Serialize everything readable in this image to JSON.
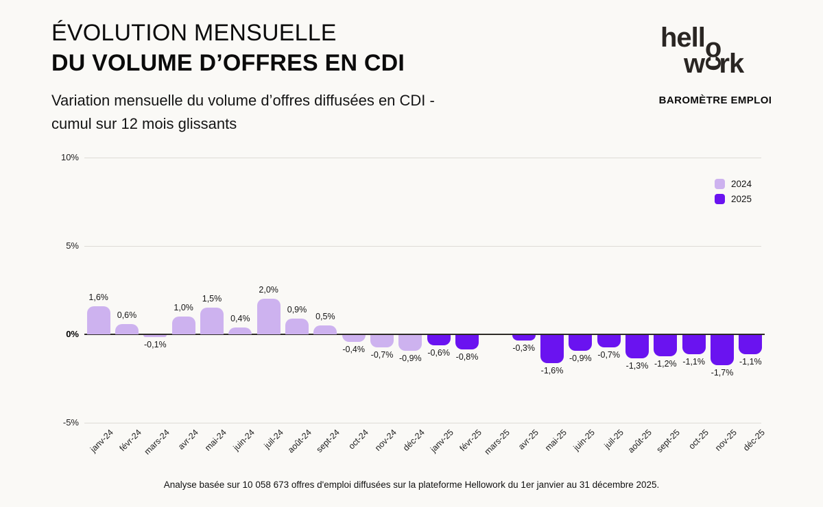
{
  "header": {
    "title_line1": "ÉVOLUTION MENSUELLE",
    "title_line2": "DU VOLUME D’OFFRES EN CDI",
    "subtitle_line1": "Variation mensuelle du volume d’offres diffusées en CDI -",
    "subtitle_line2": "cumul sur 12 mois glissants"
  },
  "logo": {
    "line1": "hell",
    "line1_o": "o",
    "line2_start": "w",
    "line2_o": "c",
    "line2_end": "rk",
    "tagline": "BAROMÈTRE EMPLOI"
  },
  "chart_data": {
    "type": "bar",
    "title": "",
    "xlabel": "",
    "ylabel": "",
    "categories": [
      "janv-24",
      "févr-24",
      "mars-24",
      "avr-24",
      "mai-24",
      "juin-24",
      "juil-24",
      "août-24",
      "sept-24",
      "oct-24",
      "nov-24",
      "déc-24",
      "janv-25",
      "févr-25",
      "mars-25",
      "avr-25",
      "mai-25",
      "juin-25",
      "juil-25",
      "août-25",
      "sept-25",
      "oct-25",
      "nov-25",
      "déc-25"
    ],
    "values": [
      1.6,
      0.6,
      -0.1,
      1.0,
      1.5,
      0.4,
      2.0,
      0.9,
      0.5,
      -0.4,
      -0.7,
      -0.9,
      -0.6,
      -0.8,
      0.0,
      -0.3,
      -1.6,
      -0.9,
      -0.7,
      -1.3,
      -1.2,
      -1.1,
      -1.7,
      -1.1
    ],
    "bar_labels": [
      "1,6%",
      "0,6%",
      "-0,1%",
      "1,0%",
      "1,5%",
      "0,4%",
      "2,0%",
      "0,9%",
      "0,5%",
      "-0,4%",
      "-0,7%",
      "-0,9%",
      "-0,6%",
      "-0,8%",
      "",
      "-0,3%",
      "-1,6%",
      "-0,9%",
      "-0,7%",
      "-1,3%",
      "-1,2%",
      "-1,1%",
      "-1,7%",
      "-1,1%"
    ],
    "series_year_by_index": [
      "2024",
      "2024",
      "2024",
      "2024",
      "2024",
      "2024",
      "2024",
      "2024",
      "2024",
      "2024",
      "2024",
      "2024",
      "2025",
      "2025",
      "2025",
      "2025",
      "2025",
      "2025",
      "2025",
      "2025",
      "2025",
      "2025",
      "2025",
      "2025"
    ],
    "legend": [
      {
        "name": "2024",
        "color": "#CDB2EF"
      },
      {
        "name": "2025",
        "color": "#6A13F0"
      }
    ],
    "legend_position": "top-right",
    "ytick_labels": [
      "10%",
      "5%",
      "0%",
      "-5%"
    ],
    "ytick_values": [
      10,
      5,
      0,
      -5
    ],
    "ylim": [
      -5.6,
      10.3
    ],
    "grid": true,
    "zero_line": true
  },
  "colors": {
    "background": "#FAF9F6",
    "grid": "#DEDBD6",
    "zero_line": "#2D2A26",
    "text": "#111111"
  },
  "footer": {
    "note": "Analyse basée sur 10 058 673 offres d'emploi diffusées sur la plateforme Hellowork du 1er janvier au 31 décembre 2025."
  }
}
